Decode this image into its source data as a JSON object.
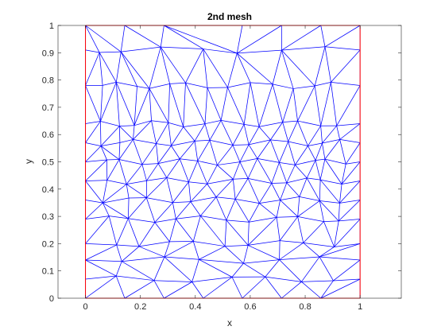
{
  "figure": {
    "title": "2nd mesh",
    "xlabel": "x",
    "ylabel": "y"
  },
  "chart_data": {
    "type": "mesh",
    "title": "2nd mesh",
    "xlabel": "x",
    "ylabel": "y",
    "xlim": [
      -0.1,
      1.15
    ],
    "ylim": [
      0,
      1
    ],
    "x_ticks": [
      "0",
      "0.2",
      "0.4",
      "0.6",
      "0.8",
      "1"
    ],
    "x_tick_values": [
      0,
      0.2,
      0.4,
      0.6,
      0.8,
      1
    ],
    "y_ticks": [
      "0",
      "0.1",
      "0.2",
      "0.3",
      "0.4",
      "0.5",
      "0.6",
      "0.7",
      "0.8",
      "0.9",
      "1"
    ],
    "y_tick_values": [
      0,
      0.1,
      0.2,
      0.3,
      0.4,
      0.5,
      0.6,
      0.7,
      0.8,
      0.9,
      1
    ],
    "grid": false,
    "mesh_color": "#0000ff",
    "boundary_color": "#ff0000",
    "boundary": [
      [
        0,
        0
      ],
      [
        1,
        0
      ],
      [
        1,
        1
      ],
      [
        0,
        1
      ]
    ],
    "rows": [
      [
        0,
        0.143,
        0.286,
        0.571,
        0.714,
        0.857,
        1
      ],
      [
        0,
        0.05,
        0.128,
        0.277,
        0.424,
        0.558,
        0.707,
        0.88,
        1
      ],
      [
        0,
        0.055,
        0.12,
        0.18,
        0.24,
        0.3,
        0.37,
        0.44,
        0.52,
        0.6,
        0.68,
        0.76,
        0.83,
        0.9,
        1
      ],
      [
        0,
        0.06,
        0.12,
        0.18,
        0.24,
        0.3,
        0.36,
        0.43,
        0.5,
        0.57,
        0.64,
        0.71,
        0.78,
        0.85,
        0.92,
        1
      ],
      [
        0,
        0.06,
        0.12,
        0.18,
        0.25,
        0.32,
        0.39,
        0.46,
        0.53,
        0.6,
        0.67,
        0.74,
        0.81,
        0.86,
        0.93,
        1
      ],
      [
        0,
        0.07,
        0.13,
        0.2,
        0.27,
        0.34,
        0.41,
        0.48,
        0.56,
        0.63,
        0.7,
        0.77,
        0.83,
        0.88,
        0.94,
        1
      ],
      [
        0,
        0.08,
        0.15,
        0.22,
        0.3,
        0.37,
        0.45,
        0.53,
        0.6,
        0.67,
        0.74,
        0.8,
        0.86,
        0.93,
        1
      ],
      [
        0,
        0.07,
        0.15,
        0.23,
        0.31,
        0.39,
        0.47,
        0.55,
        0.63,
        0.71,
        0.78,
        0.85,
        0.93,
        1
      ],
      [
        0,
        0.08,
        0.16,
        0.25,
        0.33,
        0.42,
        0.51,
        0.6,
        0.69,
        0.78,
        0.86,
        0.93,
        1
      ],
      [
        0,
        0.11,
        0.2,
        0.3,
        0.4,
        0.5,
        0.6,
        0.7,
        0.8,
        0.9,
        1
      ],
      [
        0,
        0.14,
        0.28,
        0.42,
        0.57,
        0.71,
        0.85,
        1
      ],
      [
        0,
        0.11,
        0.25,
        0.39,
        0.53,
        0.66,
        0.78,
        0.91,
        1
      ],
      [
        0,
        0.143,
        0.286,
        0.429,
        0.571,
        0.714,
        0.857,
        1
      ]
    ],
    "row_y": [
      1,
      0.91,
      0.78,
      0.64,
      0.57,
      0.5,
      0.43,
      0.36,
      0.29,
      0.2,
      0.14,
      0.07,
      0
    ]
  }
}
